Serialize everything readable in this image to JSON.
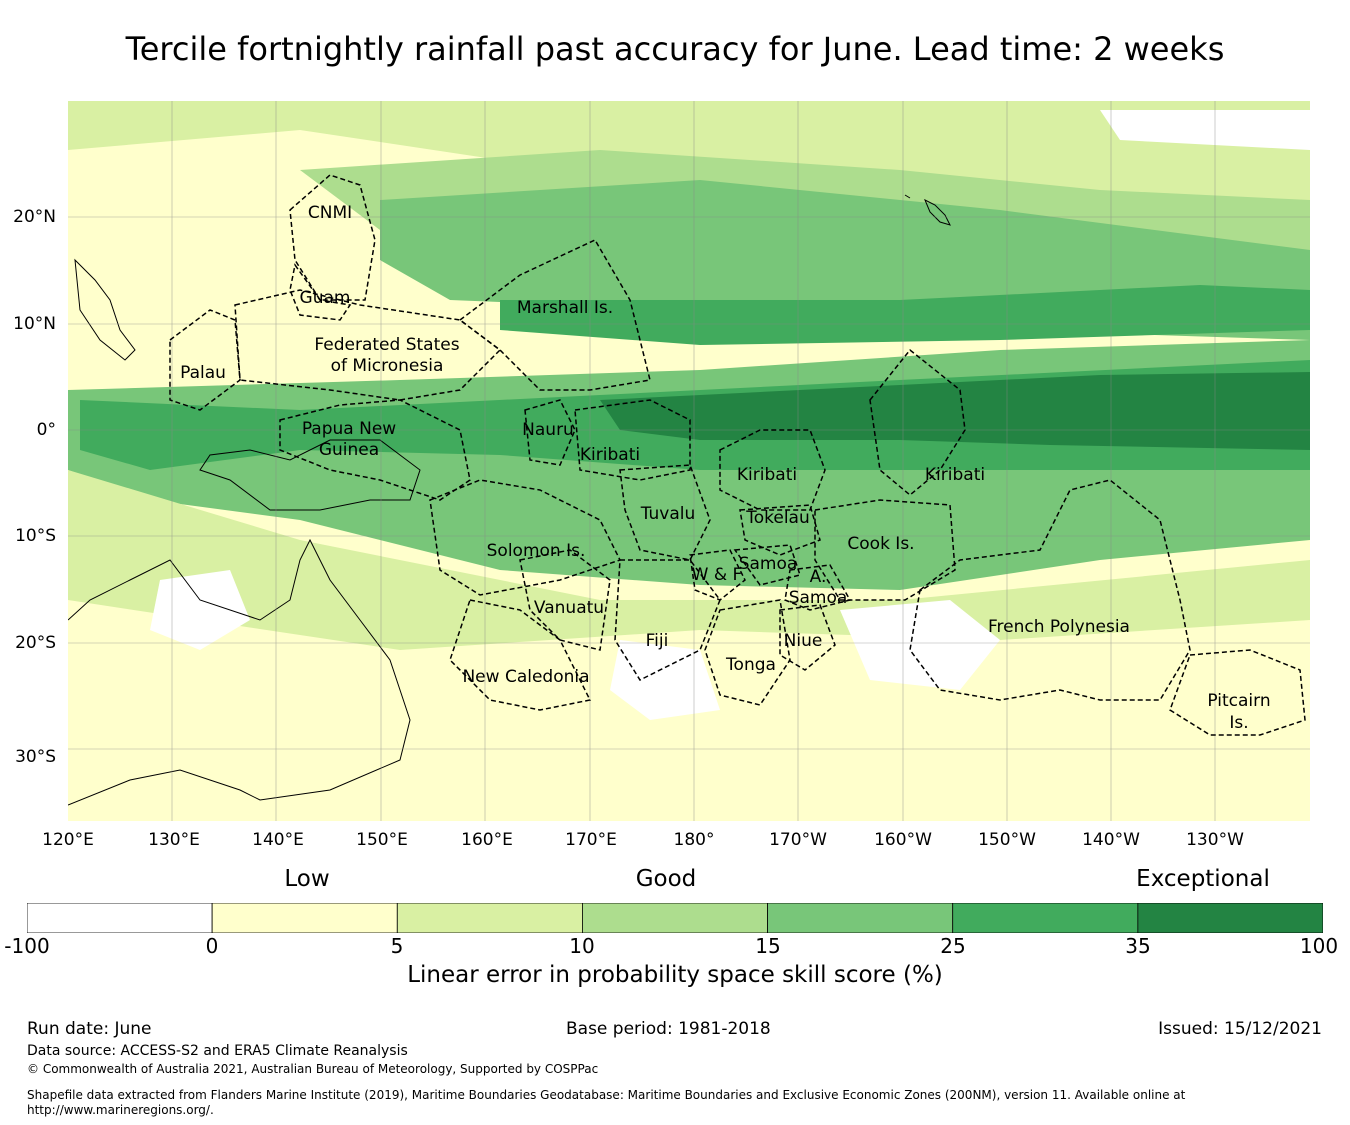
{
  "title": "Tercile fortnightly rainfall past accuracy for June. Lead time: 2 weeks",
  "map": {
    "lon_labels": [
      "120°E",
      "130°E",
      "140°E",
      "150°E",
      "160°E",
      "170°E",
      "180°",
      "170°W",
      "160°W",
      "150°W",
      "140°W",
      "130°W"
    ],
    "lat_labels": [
      "20°N",
      "10°N",
      "0°",
      "10°S",
      "20°S",
      "30°S"
    ],
    "regions": [
      "CNMI",
      "Guam",
      "Marshall Is.",
      "Federated States",
      "of Micronesia",
      "Palau",
      "Papua New",
      "Guinea",
      "Nauru",
      "Kiribati",
      "Kiribati",
      "Kiribati",
      "Tuvalu",
      "Tokelau",
      "Cook Is.",
      "Samoa",
      "W & F",
      "A.",
      "Samoa",
      "Solomon Is.",
      "Vanuatu",
      "Fiji",
      "Niue",
      "Tonga",
      "New Caledonia",
      "French Polynesia",
      "Pitcairn",
      "Is."
    ]
  },
  "legend": {
    "categories": [
      "Low",
      "Good",
      "Exceptional"
    ],
    "ticks": [
      "-100",
      "0",
      "5",
      "10",
      "15",
      "25",
      "35",
      "100"
    ],
    "colors": [
      "#ffffff",
      "#ffffcc",
      "#d9f0a3",
      "#addd8e",
      "#78c679",
      "#41ab5d",
      "#238443"
    ],
    "label": "Linear error in probability space skill score (%)"
  },
  "footer": {
    "run_date": "Run date: June",
    "base_period": "Base period: 1981-2018",
    "issued": "Issued: 15/12/2021",
    "data_source": "Data source: ACCESS-S2 and ERA5 Climate Reanalysis",
    "copyright": "© Commonwealth of Australia 2021, Australian Bureau of Meteorology, Supported by COSPPac",
    "shapefile_line1": "Shapefile data extracted from Flanders Marine Institute (2019), Maritime Boundaries Geodatabase: Maritime Boundaries and Exclusive Economic Zones (200NM), version 11. Available online at",
    "shapefile_line2": "http://www.marineregions.org/."
  }
}
